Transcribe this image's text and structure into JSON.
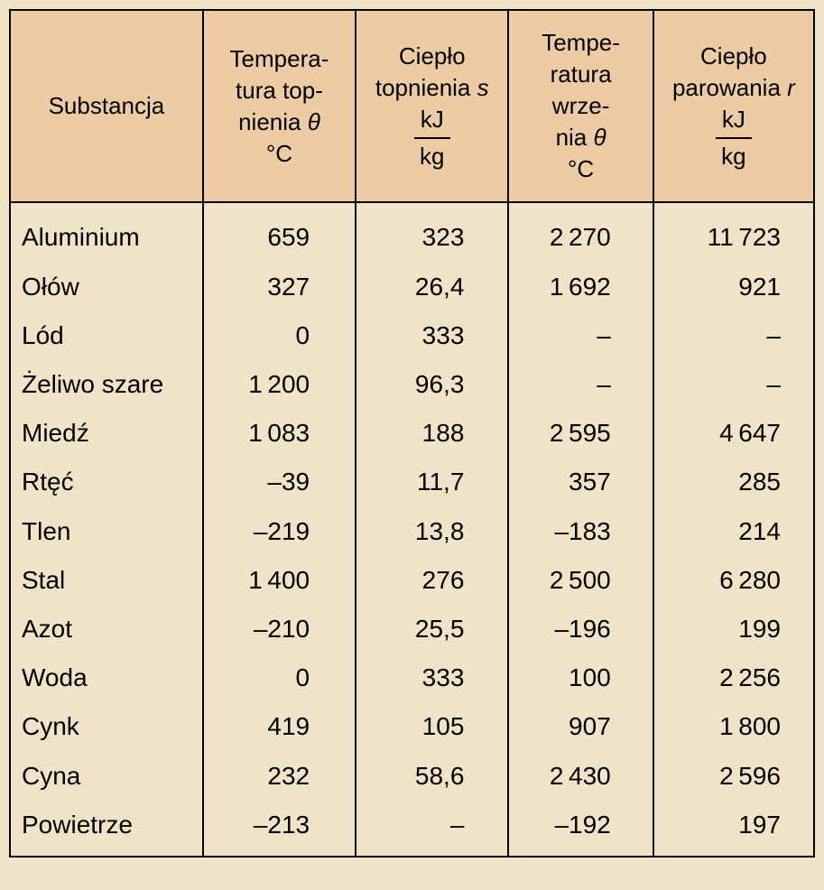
{
  "table": {
    "background_color": "#f1e3c8",
    "header_background_color": "#edcba4",
    "border_color": "#000000",
    "font_family": "Arial",
    "header_fontsize": 26,
    "body_fontsize": 28,
    "columns": {
      "c1": {
        "line1": "Substancja"
      },
      "c2": {
        "line1": "Tempera-",
        "line2": "tura top-",
        "line3": "nienia ",
        "line3_sym": "θ",
        "line4": "°C"
      },
      "c3": {
        "line1": "Ciepło",
        "line2": "topnienia ",
        "line2_sym": "s",
        "frac_top": "kJ",
        "frac_bot": "kg"
      },
      "c4": {
        "line1": "Tempe-",
        "line2": "ratura",
        "line3": "wrze-",
        "line4": "nia ",
        "line4_sym": "θ",
        "line5": "°C"
      },
      "c5": {
        "line1": "Ciepło",
        "line2": "parowania ",
        "line2_sym": "r",
        "frac_top": "kJ",
        "frac_bot": "kg"
      }
    },
    "rows": [
      {
        "name": "Aluminium",
        "melt_t": "659",
        "melt_h": "323",
        "boil_t": "2 270",
        "boil_h": "11 723"
      },
      {
        "name": "Ołów",
        "melt_t": "327",
        "melt_h": "26,4",
        "boil_t": "1 692",
        "boil_h": "921"
      },
      {
        "name": "Lód",
        "melt_t": "0",
        "melt_h": "333",
        "boil_t": "–",
        "boil_h": "–"
      },
      {
        "name": "Żeliwo szare",
        "melt_t": "1 200",
        "melt_h": "96,3",
        "boil_t": "–",
        "boil_h": "–"
      },
      {
        "name": "Miedź",
        "melt_t": "1 083",
        "melt_h": "188",
        "boil_t": "2 595",
        "boil_h": "4 647"
      },
      {
        "name": "Rtęć",
        "melt_t": "–39",
        "melt_h": "11,7",
        "boil_t": "357",
        "boil_h": "285"
      },
      {
        "name": "Tlen",
        "melt_t": "–219",
        "melt_h": "13,8",
        "boil_t": "–183",
        "boil_h": "214"
      },
      {
        "name": "Stal",
        "melt_t": "1 400",
        "melt_h": "276",
        "boil_t": "2 500",
        "boil_h": "6 280"
      },
      {
        "name": "Azot",
        "melt_t": "–210",
        "melt_h": "25,5",
        "boil_t": "–196",
        "boil_h": "199"
      },
      {
        "name": "Woda",
        "melt_t": "0",
        "melt_h": "333",
        "boil_t": "100",
        "boil_h": "2 256"
      },
      {
        "name": "Cynk",
        "melt_t": "419",
        "melt_h": "105",
        "boil_t": "907",
        "boil_h": "1 800"
      },
      {
        "name": "Cyna",
        "melt_t": "232",
        "melt_h": "58,6",
        "boil_t": "2 430",
        "boil_h": "2 596"
      },
      {
        "name": "Powietrze",
        "melt_t": "–213",
        "melt_h": "–",
        "boil_t": "–192",
        "boil_h": "197"
      }
    ]
  }
}
